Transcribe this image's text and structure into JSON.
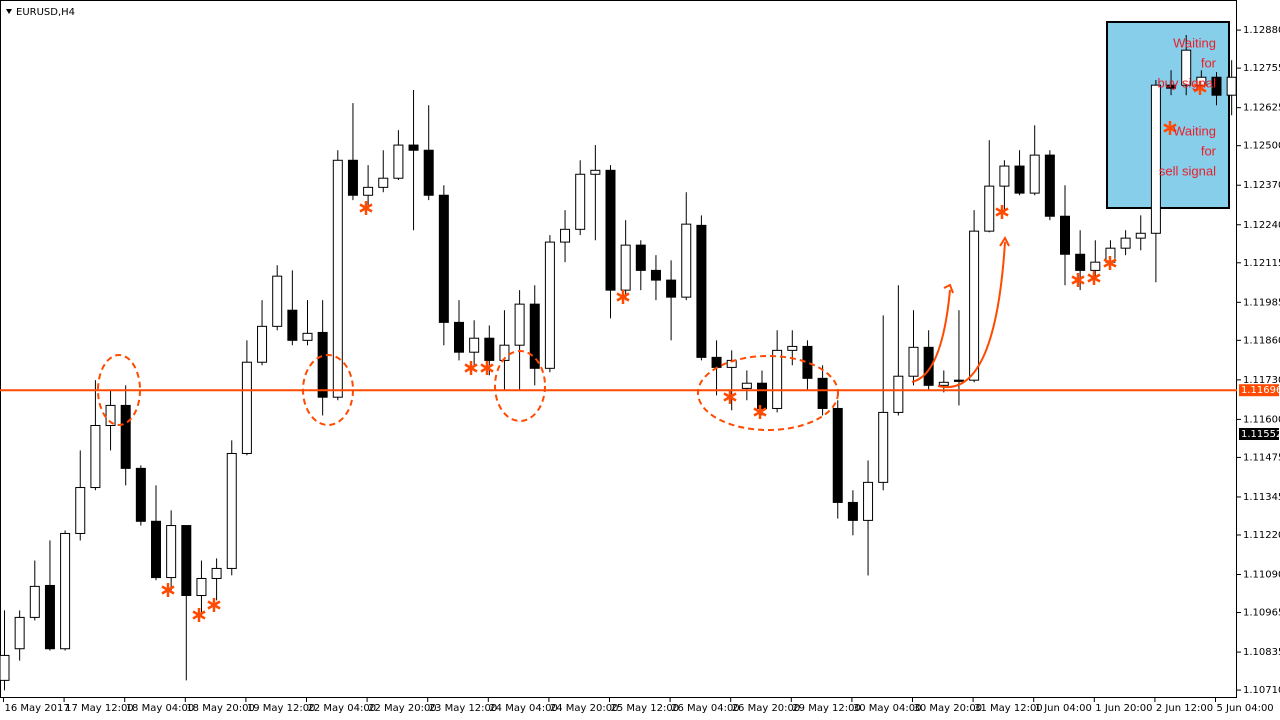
{
  "chart_data": {
    "type": "candlestick",
    "title": "EURUSD,H4",
    "categories": [
      "16 May 2017",
      null,
      null,
      null,
      "17 May 12:00",
      null,
      null,
      null,
      "18 May 04:00",
      null,
      null,
      null,
      "18 May 20:00",
      null,
      null,
      null,
      "19 May 12:00",
      null,
      null,
      null,
      "22 May 04:00",
      null,
      null,
      null,
      "22 May 20:00",
      null,
      null,
      null,
      "23 May 12:00",
      null,
      null,
      null,
      "24 May 04:00",
      null,
      null,
      null,
      "24 May 20:00",
      null,
      null,
      null,
      "25 May 12:00",
      null,
      null,
      null,
      "26 May 04:00",
      null,
      null,
      null,
      "26 May 20:00",
      null,
      null,
      null,
      "29 May 12:00",
      null,
      null,
      null,
      "30 May 04:00",
      null,
      null,
      null,
      "30 May 20:00",
      null,
      null,
      null,
      "31 May 12:00",
      null,
      null,
      null,
      "1 Jun 04:00",
      null,
      null,
      null,
      "1 Jun 20:00",
      null,
      null,
      null,
      "2 Jun 12:00",
      null,
      null,
      null,
      "5 Jun 04:00",
      null
    ],
    "open": [
      1.10742,
      1.10846,
      1.10949,
      1.11054,
      1.10846,
      1.11225,
      1.11376,
      1.1158,
      1.11646,
      1.11439,
      1.11265,
      1.1108,
      1.11251,
      1.11021,
      1.11077,
      1.1111,
      1.11488,
      1.11788,
      1.11906,
      1.11959,
      1.1186,
      1.11886,
      1.11673,
      1.12452,
      1.12337,
      1.12363,
      1.12393,
      1.12502,
      1.12485,
      1.12337,
      1.11919,
      1.11821,
      1.11867,
      1.11794,
      1.11844,
      1.11979,
      1.11768,
      1.12183,
      1.12225,
      1.12406,
      1.12419,
      1.12025,
      1.12173,
      1.1209,
      1.12058,
      1.12002,
      1.12238,
      1.11804,
      1.11771,
      1.11702,
      1.11719,
      1.11636,
      1.11827,
      1.1184,
      1.11735,
      1.11636,
      1.11327,
      1.11268,
      1.11393,
      1.11623,
      1.11742,
      1.11837,
      1.11712,
      1.11729,
      1.11729,
      1.12219,
      1.12367,
      1.12433,
      1.12344,
      1.12469,
      1.12268,
      1.12143,
      1.1209,
      1.12117,
      1.12163,
      1.12196,
      1.12212,
      1.12699,
      1.12699,
      1.12699,
      1.12725,
      1.12666
    ],
    "high": [
      1.10972,
      1.10972,
      1.11136,
      1.11202,
      1.11235,
      1.11498,
      1.11729,
      1.11696,
      1.11712,
      1.11449,
      1.11383,
      1.11301,
      1.11251,
      1.11136,
      1.11143,
      1.11531,
      1.1186,
      1.11992,
      1.12107,
      1.1209,
      1.11992,
      1.11992,
      1.12485,
      1.1264,
      1.12436,
      1.12485,
      1.12551,
      1.12683,
      1.12633,
      1.1237,
      1.11992,
      1.11926,
      1.11909,
      1.11959,
      1.12025,
      1.12041,
      1.12206,
      1.12288,
      1.12452,
      1.12502,
      1.12436,
      1.12255,
      1.12189,
      1.1214,
      1.12123,
      1.12347,
      1.12271,
      1.1186,
      1.11827,
      1.11761,
      1.11761,
      1.11893,
      1.11893,
      1.1186,
      1.11778,
      1.11663,
      1.11367,
      1.11465,
      1.11942,
      1.12041,
      1.11959,
      1.11893,
      1.11761,
      1.11959,
      1.12288,
      1.12518,
      1.12452,
      1.12485,
      1.12567,
      1.12485,
      1.1237,
      1.12222,
      1.12189,
      1.12189,
      1.12222,
      1.12271,
      1.12716,
      1.12748,
      1.12864,
      1.12748,
      1.12742,
      1.12781
    ],
    "low": [
      1.10709,
      1.10807,
      1.10939,
      1.1084,
      1.1084,
      1.11202,
      1.11367,
      1.11498,
      1.11383,
      1.11251,
      1.11071,
      1.11038,
      1.10742,
      1.10955,
      1.11005,
      1.11087,
      1.11482,
      1.11778,
      1.11893,
      1.11844,
      1.11844,
      1.11613,
      1.11663,
      1.12321,
      1.12304,
      1.12347,
      1.12387,
      1.12222,
      1.12321,
      1.11844,
      1.11794,
      1.11778,
      1.11745,
      1.11696,
      1.11696,
      1.11712,
      1.11755,
      1.12117,
      1.12206,
      1.12189,
      1.11932,
      1.11992,
      1.12025,
      1.11992,
      1.1186,
      1.11992,
      1.11794,
      1.11679,
      1.1163,
      1.11663,
      1.11613,
      1.11623,
      1.11778,
      1.11696,
      1.11613,
      1.11274,
      1.11219,
      1.11087,
      1.11367,
      1.11613,
      1.11712,
      1.11696,
      1.11689,
      1.11646,
      1.11722,
      1.12215,
      1.12281,
      1.12337,
      1.12337,
      1.12255,
      1.12041,
      1.12025,
      1.12058,
      1.12097,
      1.1214,
      1.12156,
      1.12051,
      1.12666,
      1.12666,
      1.12683,
      1.12633,
      1.126
    ],
    "close": [
      1.10824,
      1.10949,
      1.11051,
      1.10846,
      1.11225,
      1.11376,
      1.1158,
      1.11646,
      1.11439,
      1.11265,
      1.1108,
      1.11251,
      1.11021,
      1.11077,
      1.1111,
      1.11488,
      1.11788,
      1.11906,
      1.12071,
      1.1186,
      1.11883,
      1.11673,
      1.12452,
      1.12337,
      1.12363,
      1.12393,
      1.12502,
      1.12485,
      1.12337,
      1.11919,
      1.11821,
      1.11867,
      1.11794,
      1.11844,
      1.11979,
      1.11768,
      1.12183,
      1.12225,
      1.12406,
      1.12419,
      1.12025,
      1.12173,
      1.1209,
      1.12058,
      1.12002,
      1.12242,
      1.11804,
      1.11771,
      1.11794,
      1.11719,
      1.11636,
      1.11827,
      1.1184,
      1.11735,
      1.11636,
      1.11327,
      1.11268,
      1.11393,
      1.11623,
      1.11742,
      1.11837,
      1.11712,
      1.11722,
      1.11725,
      1.12219,
      1.12367,
      1.12433,
      1.12344,
      1.12469,
      1.12268,
      1.12143,
      1.1209,
      1.12117,
      1.12163,
      1.12196,
      1.12212,
      1.12699,
      1.12689,
      1.12814,
      1.12725,
      1.12666,
      1.12725
    ],
    "up_color": "#ffffff",
    "down_color": "#000000",
    "outline_color": "#000000",
    "ylim": [
      1.10684,
      1.12979
    ],
    "yticks": [
      {
        "value": 1.1288,
        "label": "1.12880"
      },
      1.12755,
      1.12625,
      {
        "value": 1.125,
        "label": "1.12500"
      },
      {
        "value": 1.1237,
        "label": "1.12370"
      },
      {
        "value": 1.1224,
        "label": "1.12240"
      },
      1.12115,
      1.11985,
      {
        "value": 1.1186,
        "label": "1.11860"
      },
      {
        "value": 1.1173,
        "label": "1.11730"
      },
      {
        "value": 1.116,
        "label": "1.11600"
      },
      1.11475,
      1.11345,
      {
        "value": 1.1122,
        "label": "1.11220"
      },
      {
        "value": 1.1109,
        "label": "1.11090"
      },
      1.10965,
      1.10835,
      {
        "value": 1.1071,
        "label": "1.10710"
      }
    ],
    "hline": {
      "value": 1.11696,
      "color": "#ff4a00"
    },
    "current_price": 1.11552,
    "annotations": [
      [
        "Waiting",
        "for",
        "buy signal"
      ],
      [
        "Waiting",
        "for",
        "sell signal"
      ]
    ]
  }
}
